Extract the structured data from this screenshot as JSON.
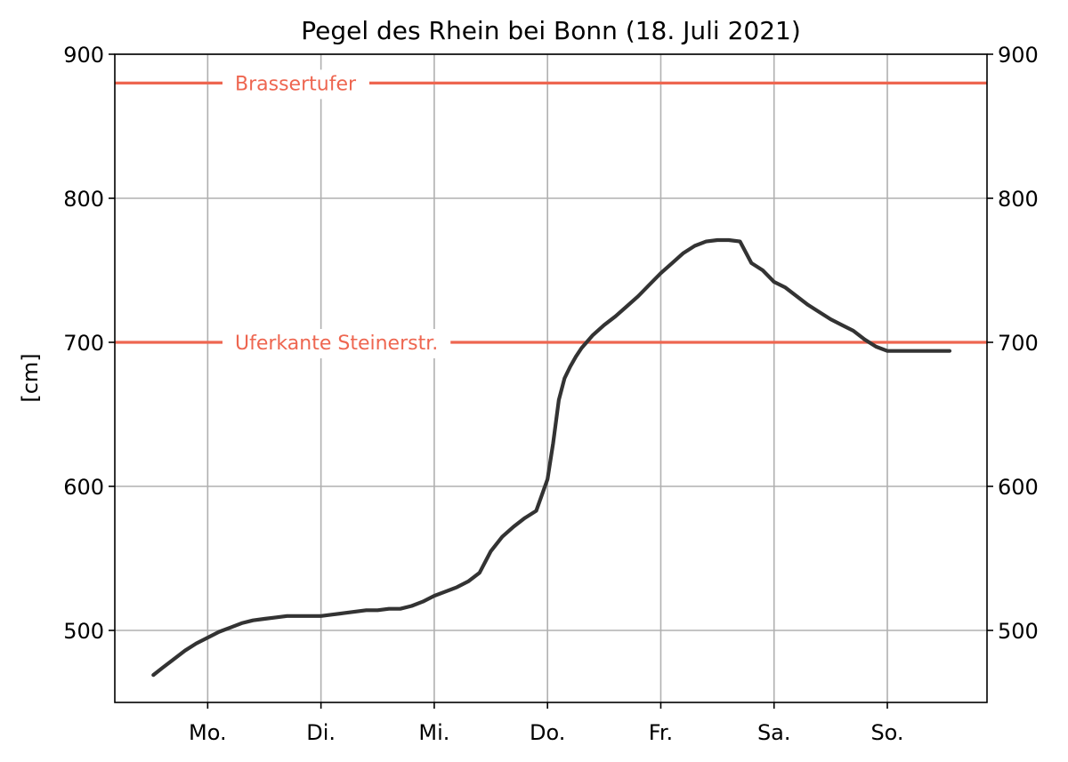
{
  "chart_data": {
    "type": "line",
    "title": "Pegel des Rhein bei Bonn (18. Juli 2021)",
    "ylabel": "[cm]",
    "xlabel": "",
    "ylim": [
      450,
      900
    ],
    "xlim": [
      -0.82,
      6.88
    ],
    "yticks": [
      500,
      600,
      700,
      800,
      900
    ],
    "x_ticks": [
      "Mo.",
      "Di.",
      "Mi.",
      "Do.",
      "Fr.",
      "Sa.",
      "So."
    ],
    "grid": true,
    "right_axis_ticks": true,
    "line_color": "#333333",
    "threshold_color": "#ee6650",
    "thresholds": [
      {
        "label": "Brassertufer",
        "value": 880
      },
      {
        "label": "Uferkante Steinerstr.",
        "value": 700
      }
    ],
    "x": [
      -0.48,
      -0.4,
      -0.3,
      -0.2,
      -0.1,
      0.0,
      0.1,
      0.2,
      0.3,
      0.4,
      0.5,
      0.6,
      0.7,
      0.8,
      0.9,
      1.0,
      1.1,
      1.2,
      1.3,
      1.4,
      1.5,
      1.6,
      1.7,
      1.8,
      1.9,
      2.0,
      2.1,
      2.2,
      2.3,
      2.4,
      2.5,
      2.6,
      2.7,
      2.8,
      2.9,
      3.0,
      3.05,
      3.1,
      3.15,
      3.2,
      3.25,
      3.3,
      3.4,
      3.5,
      3.6,
      3.7,
      3.8,
      3.9,
      4.0,
      4.1,
      4.2,
      4.3,
      4.4,
      4.5,
      4.6,
      4.7,
      4.8,
      4.9,
      5.0,
      5.1,
      5.2,
      5.3,
      5.4,
      5.5,
      5.6,
      5.7,
      5.8,
      5.9,
      6.0,
      6.1,
      6.2,
      6.3,
      6.4,
      6.55
    ],
    "values": [
      469,
      474,
      480,
      486,
      491,
      495,
      499,
      502,
      505,
      507,
      508,
      509,
      510,
      510,
      510,
      510,
      511,
      512,
      513,
      514,
      514,
      515,
      515,
      517,
      520,
      524,
      527,
      530,
      534,
      540,
      555,
      565,
      572,
      578,
      583,
      605,
      630,
      660,
      675,
      683,
      690,
      696,
      705,
      712,
      718,
      725,
      732,
      740,
      748,
      755,
      762,
      767,
      770,
      771,
      771,
      770,
      755,
      750,
      742,
      738,
      732,
      726,
      721,
      716,
      712,
      708,
      702,
      697,
      694,
      694,
      694,
      694,
      694,
      694
    ]
  }
}
